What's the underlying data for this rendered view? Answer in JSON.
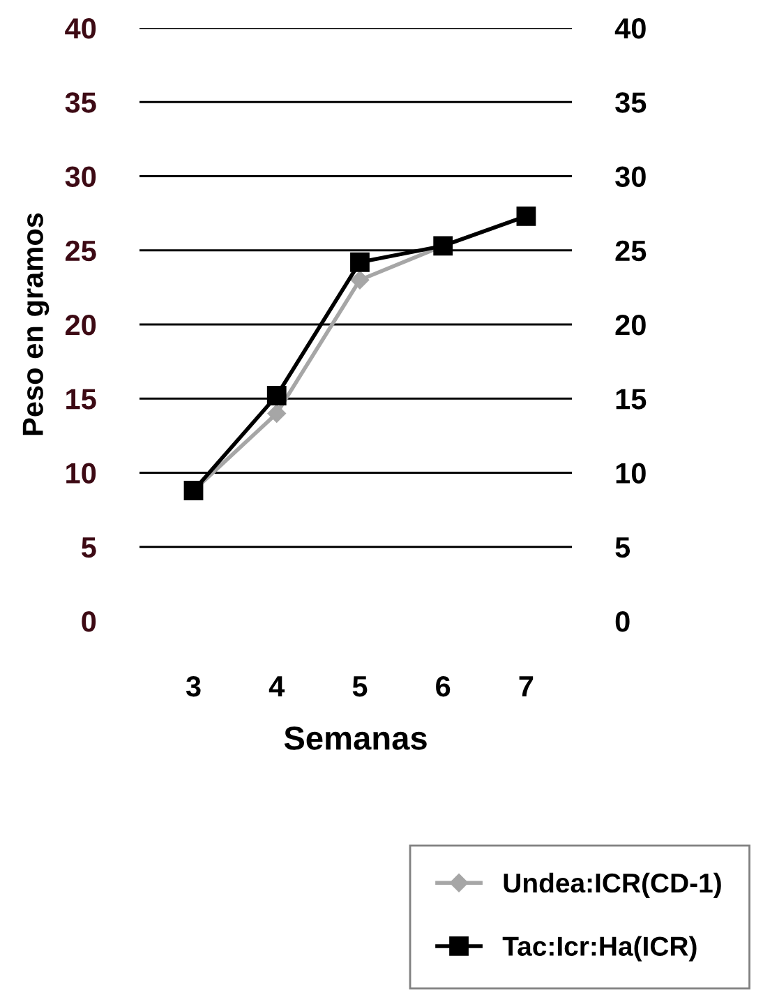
{
  "chart_data": {
    "type": "line",
    "xlabel": "Semanas",
    "ylabel": "Peso en gramos",
    "categories": [
      "3",
      "4",
      "5",
      "6",
      "7"
    ],
    "series": [
      {
        "name": "Undea:ICR(CD-1)",
        "color": "#a6a6a6",
        "marker": "diamond",
        "values": [
          8.8,
          14.0,
          23.0,
          25.3,
          27.3
        ]
      },
      {
        "name": "Tac:Icr:Ha(ICR)",
        "color": "#000000",
        "marker": "square",
        "values": [
          8.8,
          15.2,
          24.2,
          25.3,
          27.3
        ]
      }
    ],
    "ylim": [
      0,
      40
    ],
    "yticks": [
      0,
      5,
      10,
      15,
      20,
      25,
      30,
      35,
      40
    ],
    "y2lim": [
      0,
      40
    ],
    "y2ticks": [
      0,
      5,
      10,
      15,
      20,
      25,
      30,
      35,
      40
    ],
    "grid": "y",
    "legend": "bottom right",
    "line_style": "solid"
  }
}
